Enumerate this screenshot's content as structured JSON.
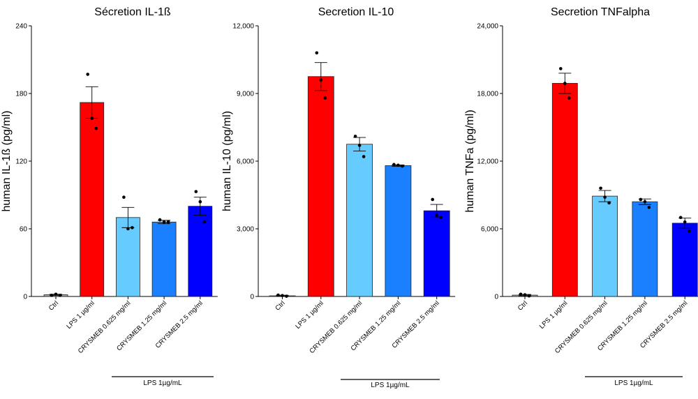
{
  "chart_data": [
    {
      "type": "bar",
      "title": "Sécretion IL-1ß",
      "ylabel": "human IL-1ß (pg/ml)",
      "xlabel": "",
      "ylim": [
        0,
        240
      ],
      "yticks": [
        0,
        60,
        120,
        180,
        240
      ],
      "ytick_labels": [
        "0",
        "60",
        "120",
        "180",
        "240"
      ],
      "categories": [
        "Ctrl",
        "LPS 1 µg/ml",
        "CRYSMEB 0.625 mg/ml",
        "CRYSMEB 1.25 mg/ml",
        "CRYSMEB 2.5 mg/ml"
      ],
      "values": [
        1.5,
        172,
        70,
        66,
        80
      ],
      "errors": [
        0.5,
        14,
        9,
        1.5,
        8
      ],
      "points": [
        [
          1,
          2,
          1
        ],
        [
          197,
          158,
          149
        ],
        [
          88,
          60,
          61
        ],
        [
          68,
          66,
          66
        ],
        [
          93,
          84,
          66
        ]
      ],
      "group_label": "LPS 1µg/mL"
    },
    {
      "type": "bar",
      "title": "Secretion IL-10",
      "ylabel": "human IL-10 (pg/ml)",
      "xlabel": "",
      "ylim": [
        0,
        12000
      ],
      "yticks": [
        0,
        3000,
        6000,
        9000,
        12000
      ],
      "ytick_labels": [
        "0",
        "3,000",
        "6,000",
        "9,000",
        "12,000"
      ],
      "categories": [
        "Ctrl",
        "LPS 1 µg/ml",
        "CRYSMEB 0.625 mg/ml",
        "CRYSMEB 1.25 mg/ml",
        "CRYSMEB 2.5 mg/ml"
      ],
      "values": [
        30,
        9750,
        6750,
        5800,
        3800
      ],
      "errors": [
        25,
        620,
        300,
        30,
        280
      ],
      "points": [
        [
          60,
          40,
          10
        ],
        [
          10800,
          9600,
          8800
        ],
        [
          7100,
          6700,
          6200
        ],
        [
          5850,
          5820,
          5780
        ],
        [
          4300,
          3600,
          3500
        ]
      ],
      "group_label": "LPS 1µg/mL"
    },
    {
      "type": "bar",
      "title": "Secretion TNFalpha",
      "ylabel": "human TNFa (pg/ml)",
      "xlabel": "",
      "ylim": [
        0,
        24000
      ],
      "yticks": [
        0,
        6000,
        12000,
        18000,
        24000
      ],
      "ytick_labels": [
        "0",
        "6,000",
        "12,000",
        "18,000",
        "24,000"
      ],
      "categories": [
        "Ctrl",
        "LPS 1 µg/ml",
        "CRYSMEB 0.625 mg/ml",
        "CRYSMEB 1.25 mg/ml",
        "CRYSMEB 2.5 mg/ml"
      ],
      "values": [
        120,
        18900,
        8900,
        8400,
        6500
      ],
      "errors": [
        60,
        900,
        500,
        250,
        450
      ],
      "points": [
        [
          200,
          150,
          50
        ],
        [
          20200,
          18900,
          17600
        ],
        [
          9600,
          8800,
          8300
        ],
        [
          8600,
          8400,
          7900
        ],
        [
          7000,
          6600,
          5800
        ]
      ],
      "group_label": "LPS 1µg/mL"
    }
  ],
  "colors": [
    "#a6a6a6",
    "#ff0000",
    "#66ccff",
    "#1a80ff",
    "#0000ff"
  ]
}
